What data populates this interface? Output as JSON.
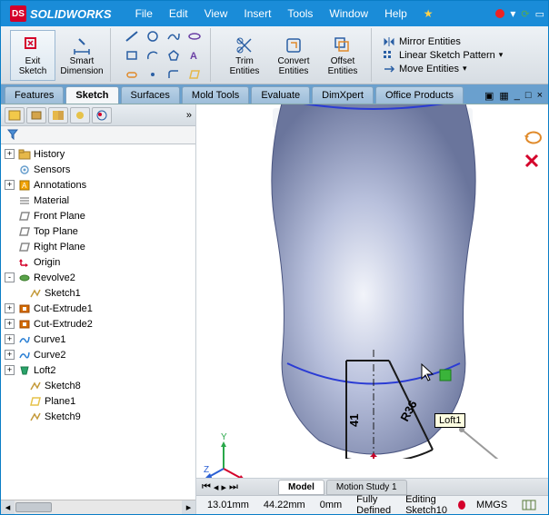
{
  "app": {
    "name": "SOLIDWORKS"
  },
  "menus": [
    "File",
    "Edit",
    "View",
    "Insert",
    "Tools",
    "Window",
    "Help"
  ],
  "title_dots": [
    "#e22",
    "#5a5",
    "#777"
  ],
  "ribbon": {
    "exit_sketch": "Exit\nSketch",
    "smart_dimension": "Smart\nDimension",
    "trim": "Trim\nEntities",
    "convert": "Convert\nEntities",
    "offset": "Offset\nEntities",
    "mirror": "Mirror Entities",
    "pattern": "Linear Sketch Pattern",
    "move": "Move Entities"
  },
  "tabs": [
    "Features",
    "Sketch",
    "Surfaces",
    "Mold Tools",
    "Evaluate",
    "DimXpert",
    "Office Products"
  ],
  "active_tab": "Sketch",
  "tree": [
    {
      "exp": "+",
      "icon": "folder",
      "color": "#e6b84a",
      "label": "History",
      "depth": 0
    },
    {
      "exp": "",
      "icon": "sensor",
      "color": "#6aa0ce",
      "label": "Sensors",
      "depth": 0
    },
    {
      "exp": "+",
      "icon": "annot",
      "color": "#f2a200",
      "label": "Annotations",
      "depth": 0
    },
    {
      "exp": "",
      "icon": "material",
      "color": "#666",
      "label": "Material <not specified>",
      "depth": 0
    },
    {
      "exp": "",
      "icon": "plane",
      "color": "#888",
      "label": "Front Plane",
      "depth": 0
    },
    {
      "exp": "",
      "icon": "plane",
      "color": "#888",
      "label": "Top Plane",
      "depth": 0
    },
    {
      "exp": "",
      "icon": "plane",
      "color": "#888",
      "label": "Right Plane",
      "depth": 0
    },
    {
      "exp": "",
      "icon": "origin",
      "color": "#d4002a",
      "label": "Origin",
      "depth": 0
    },
    {
      "exp": "-",
      "icon": "revolve",
      "color": "#5aa34a",
      "label": "Revolve2",
      "depth": 0
    },
    {
      "exp": "",
      "icon": "sketch",
      "color": "#c49a3a",
      "label": "Sketch1",
      "depth": 1
    },
    {
      "exp": "+",
      "icon": "cut",
      "color": "#d46a00",
      "label": "Cut-Extrude1",
      "depth": 0
    },
    {
      "exp": "+",
      "icon": "cut",
      "color": "#d46a00",
      "label": "Cut-Extrude2",
      "depth": 0
    },
    {
      "exp": "+",
      "icon": "curve",
      "color": "#2a7fd4",
      "label": "Curve1",
      "depth": 0
    },
    {
      "exp": "+",
      "icon": "curve",
      "color": "#2a7fd4",
      "label": "Curve2",
      "depth": 0
    },
    {
      "exp": "+",
      "icon": "loft",
      "color": "#2aa36a",
      "label": "Loft2",
      "depth": 0
    },
    {
      "exp": "",
      "icon": "sketch",
      "color": "#c49a3a",
      "label": "Sketch8",
      "depth": 1
    },
    {
      "exp": "",
      "icon": "plane",
      "color": "#e6c24a",
      "label": "Plane1",
      "depth": 1
    },
    {
      "exp": "",
      "icon": "sketch",
      "color": "#c49a3a",
      "label": "Sketch9",
      "depth": 1
    }
  ],
  "viewport": {
    "tooltip": "Loft1",
    "dim1": "41",
    "dim2": "R36",
    "body_color": "#9aa5c9",
    "body_light": "#e5e9f4",
    "edge_color": "#2a3bd4",
    "sketch_color": "#1a1a1a"
  },
  "bottom_tabs": [
    "Model",
    "Motion Study 1"
  ],
  "status": {
    "x": "13.01mm",
    "y": "44.22mm",
    "z": "0mm",
    "state": "Fully Defined",
    "edit": "Editing Sketch10",
    "units": "MMGS"
  }
}
